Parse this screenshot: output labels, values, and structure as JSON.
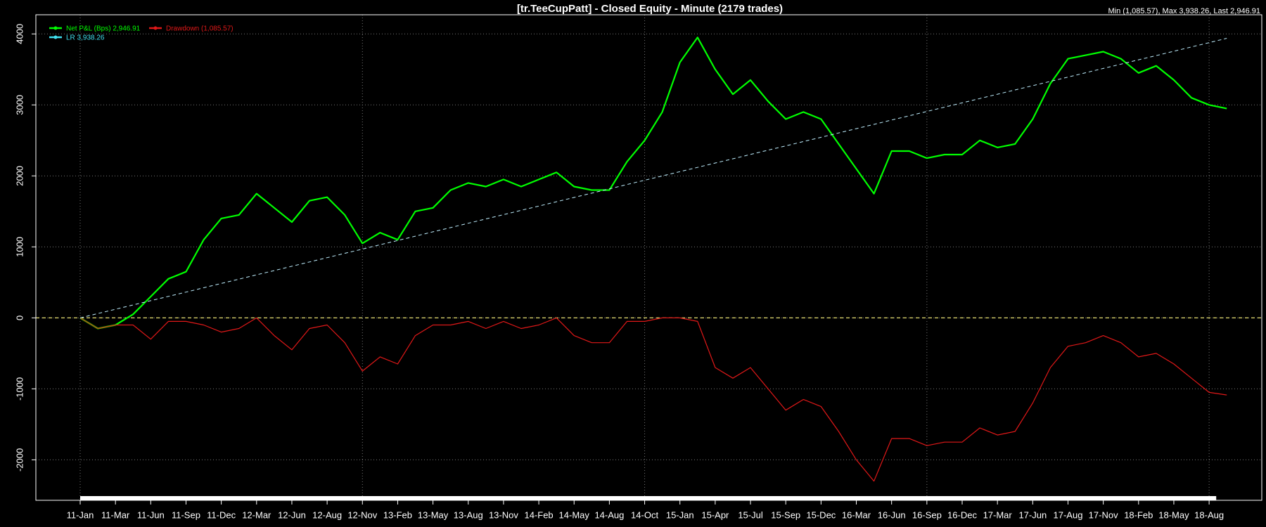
{
  "chart_data": {
    "type": "line",
    "title": "[tr.TeeCupPatt] - Closed Equity - Minute (2179 trades)",
    "subtitle": "Min (1,085.57), Max 3,938.26, Last 2,946.91",
    "categories": [
      "11-Jan",
      null,
      "11-Mar",
      null,
      "11-Jun",
      null,
      "11-Sep",
      null,
      "11-Dec",
      null,
      "12-Mar",
      null,
      "12-Jun",
      null,
      "12-Aug",
      null,
      "12-Nov",
      null,
      "13-Feb",
      null,
      "13-May",
      null,
      "13-Aug",
      null,
      "13-Nov",
      null,
      "14-Feb",
      null,
      "14-May",
      null,
      "14-Aug",
      null,
      "14-Oct",
      null,
      "15-Jan",
      null,
      "15-Apr",
      null,
      "15-Jul",
      null,
      "15-Sep",
      null,
      "15-Dec",
      null,
      "16-Mar",
      null,
      "16-Jun",
      null,
      "16-Sep",
      null,
      "16-Dec",
      null,
      "17-Mar",
      null,
      "17-Jun",
      null,
      "17-Aug",
      null,
      "17-Nov",
      null,
      "18-Feb",
      null,
      "18-May",
      null,
      "18-Aug",
      null
    ],
    "series": [
      {
        "name": "Net P&L (Bps) 2,946.91",
        "color": "#00ff00",
        "width": 2.2,
        "values": [
          0,
          -150,
          -100,
          50,
          300,
          550,
          650,
          1100,
          1400,
          1450,
          1750,
          1550,
          1350,
          1650,
          1700,
          1450,
          1050,
          1200,
          1100,
          1500,
          1550,
          1800,
          1900,
          1850,
          1950,
          1850,
          1950,
          2050,
          1850,
          1800,
          1800,
          2200,
          2500,
          2900,
          3600,
          3950,
          3500,
          3150,
          3350,
          3050,
          2800,
          2900,
          2800,
          2450,
          2100,
          1750,
          2350,
          2350,
          2250,
          2300,
          2300,
          2500,
          2400,
          2450,
          2800,
          3300,
          3650,
          3700,
          3750,
          3650,
          3450,
          3550,
          3350,
          3100,
          3000,
          2950
        ]
      },
      {
        "name": "Drawdown (1,085.57)",
        "color": "#e01818",
        "width": 1.2,
        "values": [
          0,
          -150,
          -100,
          -100,
          -300,
          -50,
          -50,
          -100,
          -200,
          -150,
          0,
          -250,
          -450,
          -150,
          -100,
          -350,
          -750,
          -550,
          -650,
          -250,
          -100,
          -100,
          -50,
          -150,
          -50,
          -150,
          -100,
          0,
          -250,
          -350,
          -350,
          -50,
          -50,
          0,
          0,
          -50,
          -700,
          -850,
          -700,
          -1000,
          -1300,
          -1150,
          -1250,
          -1600,
          -2000,
          -2300,
          -1700,
          -1700,
          -1800,
          -1750,
          -1750,
          -1550,
          -1650,
          -1600,
          -1200,
          -700,
          -400,
          -350,
          -250,
          -350,
          -550,
          -500,
          -650,
          -850,
          -1050,
          -1086
        ]
      },
      {
        "name": "LR 3,938.26",
        "color": "#bfefff",
        "width": 1,
        "dashed": true,
        "values": [
          0,
          61,
          121,
          182,
          242,
          303,
          363,
          424,
          485,
          545,
          606,
          666,
          727,
          788,
          848,
          909,
          969,
          1030,
          1090,
          1151,
          1212,
          1272,
          1333,
          1393,
          1454,
          1515,
          1575,
          1636,
          1696,
          1757,
          1817,
          1878,
          1939,
          1999,
          2060,
          2120,
          2181,
          2241,
          2302,
          2363,
          2423,
          2484,
          2544,
          2605,
          2665,
          2726,
          2787,
          2847,
          2908,
          2968,
          3029,
          3090,
          3150,
          3211,
          3271,
          3332,
          3392,
          3453,
          3514,
          3574,
          3635,
          3695,
          3756,
          3817,
          3877,
          3938
        ]
      }
    ],
    "ylim": [
      -2570,
      4270
    ],
    "yticks": [
      -2000,
      -1000,
      0,
      1000,
      2000,
      3000,
      4000
    ],
    "grid": true,
    "zero_line": true,
    "legend": "top-left"
  }
}
